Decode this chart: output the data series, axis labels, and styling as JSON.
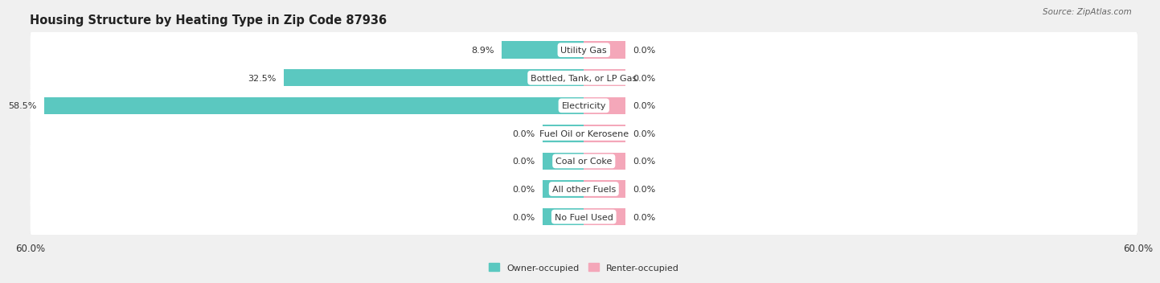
{
  "title": "Housing Structure by Heating Type in Zip Code 87936",
  "source_text": "Source: ZipAtlas.com",
  "categories": [
    "Utility Gas",
    "Bottled, Tank, or LP Gas",
    "Electricity",
    "Fuel Oil or Kerosene",
    "Coal or Coke",
    "All other Fuels",
    "No Fuel Used"
  ],
  "owner_values": [
    8.9,
    32.5,
    58.5,
    0.0,
    0.0,
    0.0,
    0.0
  ],
  "renter_values": [
    0.0,
    0.0,
    0.0,
    0.0,
    0.0,
    0.0,
    0.0
  ],
  "owner_color": "#5BC8C0",
  "renter_color": "#F4A7B9",
  "axis_limit": 60.0,
  "zero_stub": 4.5,
  "background_color": "#f0f0f0",
  "row_bg_color": "#ffffff",
  "row_shadow_color": "#d8d8d8",
  "title_fontsize": 10.5,
  "label_fontsize": 8.0,
  "tick_fontsize": 8.5,
  "bar_height": 0.62,
  "source_fontsize": 7.5
}
